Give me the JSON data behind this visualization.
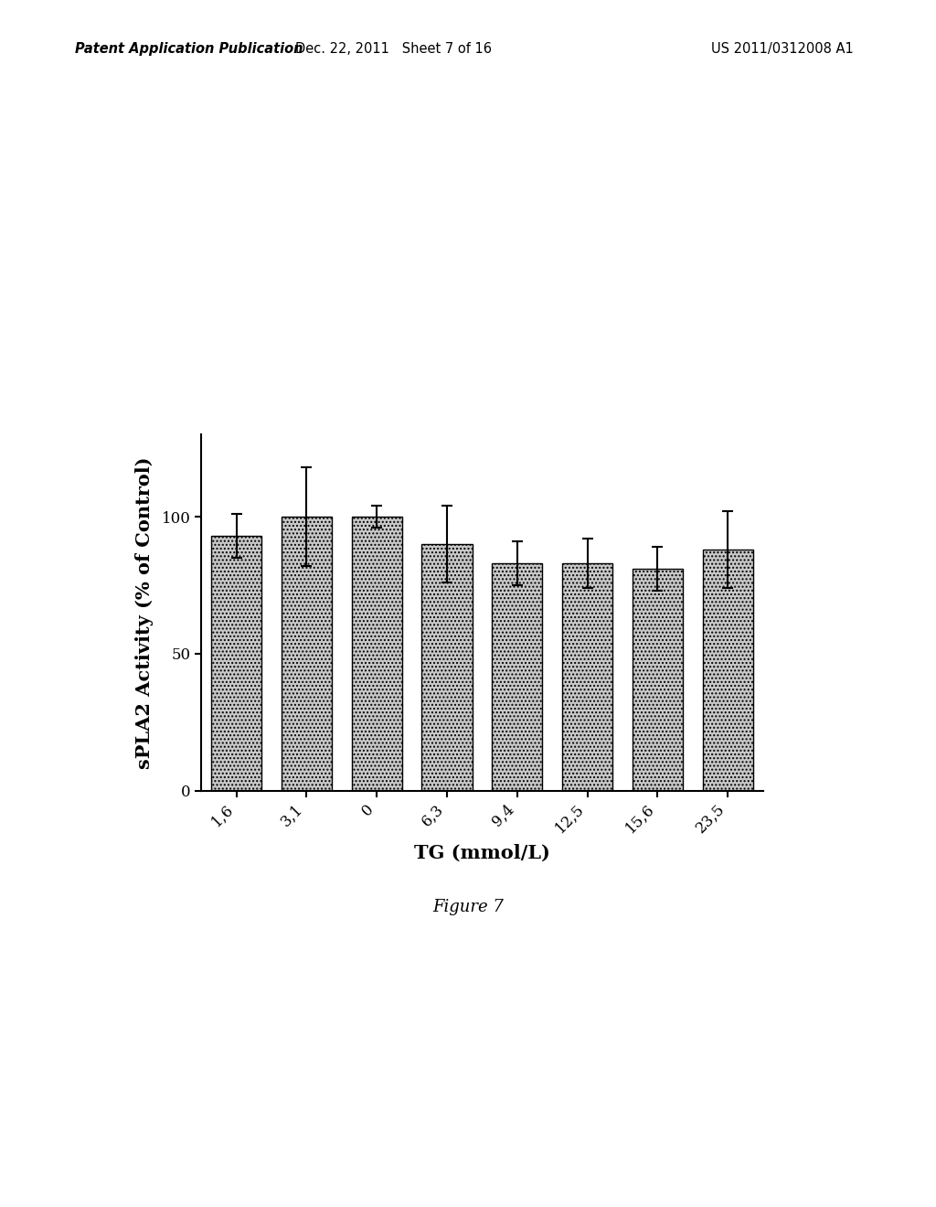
{
  "categories": [
    "1,6",
    "3,1",
    "0",
    "6,3",
    "9,4",
    "12,5",
    "15,6",
    "23,5"
  ],
  "values": [
    93,
    100,
    100,
    90,
    83,
    83,
    81,
    88
  ],
  "errors": [
    8,
    18,
    4,
    14,
    8,
    9,
    8,
    14
  ],
  "bar_color": "#c8c8c8",
  "bar_hatch": "....",
  "bar_edgecolor": "#000000",
  "xlabel": "TG (mmol/L)",
  "ylabel": "sPLA2 Activity (% of Control)",
  "ylim": [
    0,
    130
  ],
  "yticks": [
    0,
    50,
    100
  ],
  "figure_caption": "Figure 7",
  "header_left": "Patent Application Publication",
  "header_center": "Dec. 22, 2011   Sheet 7 of 16",
  "header_right": "US 2011/0312008 A1",
  "background_color": "#ffffff",
  "label_fontsize": 15,
  "tick_fontsize": 12,
  "caption_fontsize": 13,
  "header_fontsize": 10.5
}
